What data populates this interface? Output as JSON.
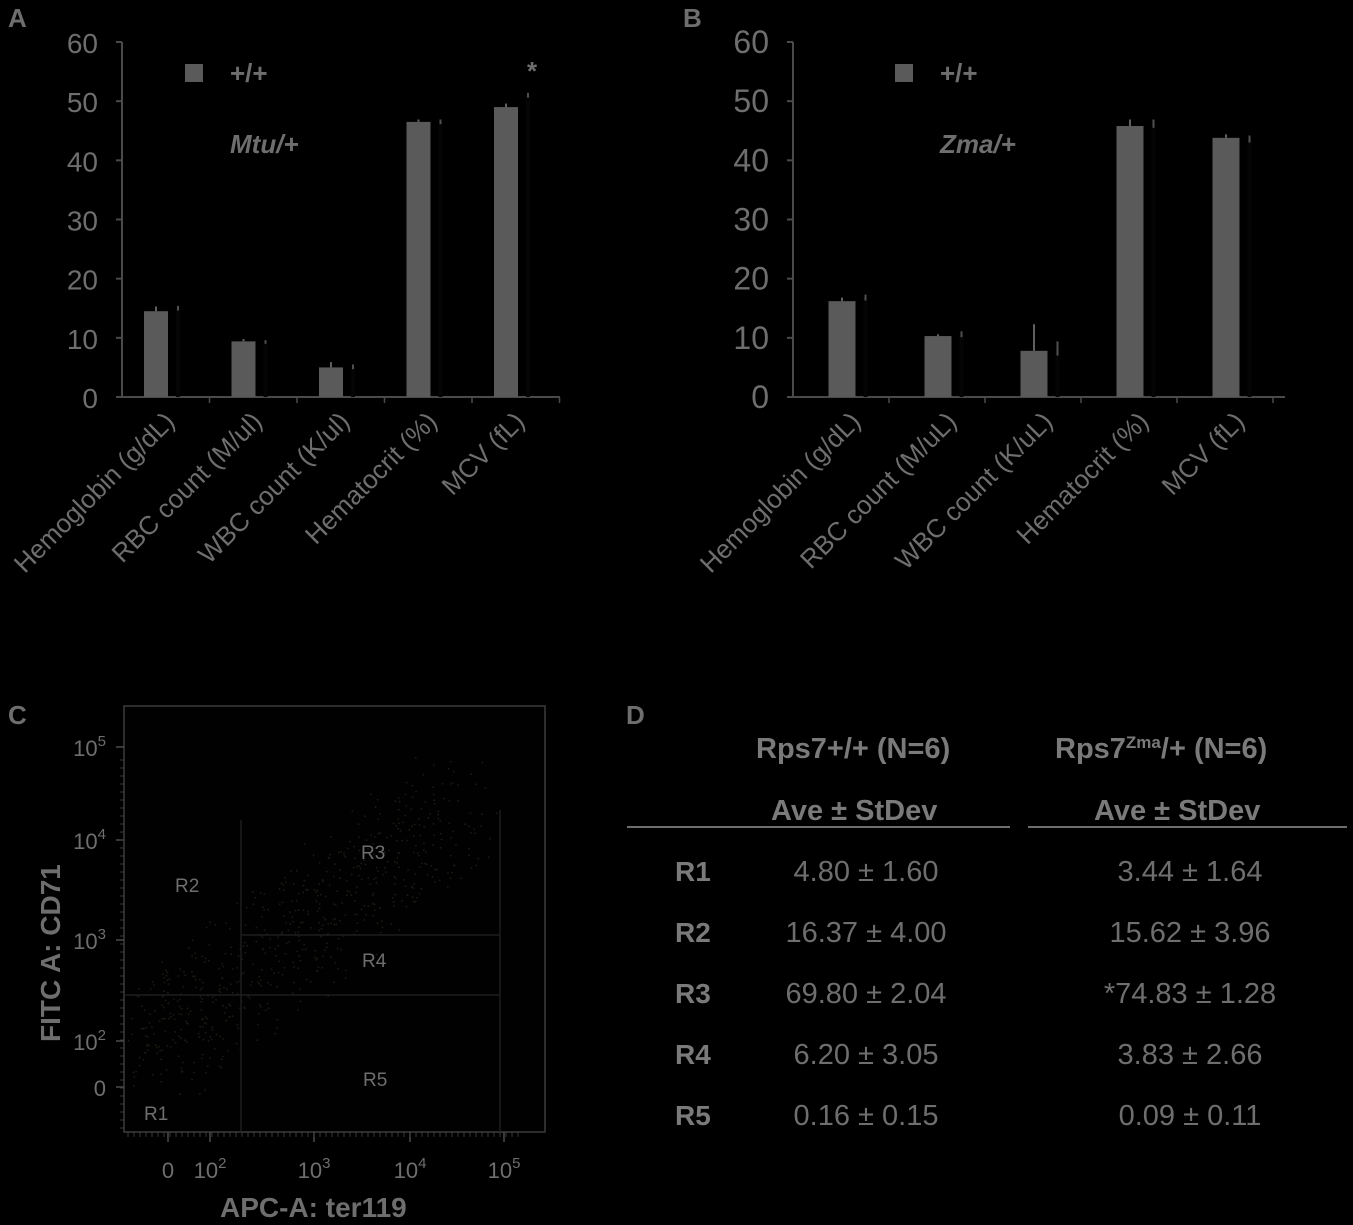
{
  "panels": {
    "A": {
      "letter": "A",
      "legend": [
        "+/+",
        "Mtu/+"
      ],
      "significance": "*"
    },
    "B": {
      "letter": "B",
      "legend": [
        "+/+",
        "Zma/+"
      ]
    },
    "C": {
      "letter": "C"
    },
    "D": {
      "letter": "D"
    }
  },
  "colors": {
    "background": "#000000",
    "bar": "#5a5a5a",
    "axis": "#4a4a4a",
    "text": "#6e6e6e"
  },
  "chart_data": [
    {
      "type": "bar",
      "panel": "A",
      "categories": [
        "Hemoglobin (g/dL)",
        "RBC count (M/ul)",
        "WBC count (K/ul)",
        "Hematocrit (%)",
        "MCV (fL)"
      ],
      "series": [
        {
          "name": "+/+",
          "values": [
            14.5,
            9.4,
            5.0,
            46.5,
            49.0
          ],
          "errors": [
            0.8,
            0.4,
            0.9,
            0.4,
            0.6
          ]
        },
        {
          "name": "Mtu/+",
          "values": [
            15.0,
            9.3,
            5.1,
            46.5,
            51.0
          ],
          "errors": [
            0.4,
            0.3,
            0.4,
            0.4,
            0.4
          ]
        }
      ],
      "ylim": [
        0,
        60
      ],
      "yticks": [
        0,
        10,
        20,
        30,
        40,
        50,
        60
      ],
      "annotations": [
        {
          "category": "MCV (fL)",
          "text": "*"
        }
      ]
    },
    {
      "type": "bar",
      "panel": "B",
      "categories": [
        "Hemoglobin (g/dL)",
        "RBC count (M/uL)",
        "WBC count (K/uL)",
        "Hematocrit (%)",
        "MCV (fL)"
      ],
      "series": [
        {
          "name": "+/+",
          "values": [
            16.2,
            10.3,
            7.8,
            45.8,
            43.8
          ],
          "errors": [
            0.6,
            0.3,
            4.5,
            1.1,
            0.6
          ]
        },
        {
          "name": "Zma/+",
          "values": [
            16.8,
            10.6,
            8.2,
            46.2,
            43.6
          ],
          "errors": [
            0.5,
            0.5,
            1.2,
            0.7,
            0.6
          ]
        }
      ],
      "ylim": [
        0,
        60
      ],
      "yticks": [
        0,
        10,
        20,
        30,
        40,
        50,
        60
      ]
    },
    {
      "type": "scatter",
      "panel": "C",
      "xlabel": "APC-A: ter119",
      "ylabel": "FITC A: CD71",
      "xticks": [
        "0",
        "10^2",
        "10^3",
        "10^4",
        "10^5"
      ],
      "yticks": [
        "0",
        "10^2",
        "10^3",
        "10^4",
        "10^5"
      ],
      "gates": [
        "R1",
        "R2",
        "R3",
        "R4",
        "R5"
      ]
    },
    {
      "type": "table",
      "panel": "D",
      "columns": [
        {
          "header": "Rps7+/+ (N=6)",
          "subheader": "Ave ± StDev"
        },
        {
          "header_main": "Rps7",
          "header_sup": "Zma",
          "header_tail": "/+ (N=6)",
          "subheader": "Ave ± StDev"
        }
      ],
      "rows": [
        {
          "label": "R1",
          "col1": "4.80 ± 1.60",
          "col2": "3.44 ± 1.64"
        },
        {
          "label": "R2",
          "col1": "16.37 ± 4.00",
          "col2": "15.62 ± 3.96"
        },
        {
          "label": "R3",
          "col1": "69.80 ± 2.04",
          "col2": "*74.83 ± 1.28"
        },
        {
          "label": "R4",
          "col1": "6.20 ± 3.05",
          "col2": "3.83 ± 2.66"
        },
        {
          "label": "R5",
          "col1": "0.16 ± 0.15",
          "col2": "0.09 ± 0.11"
        }
      ]
    }
  ]
}
